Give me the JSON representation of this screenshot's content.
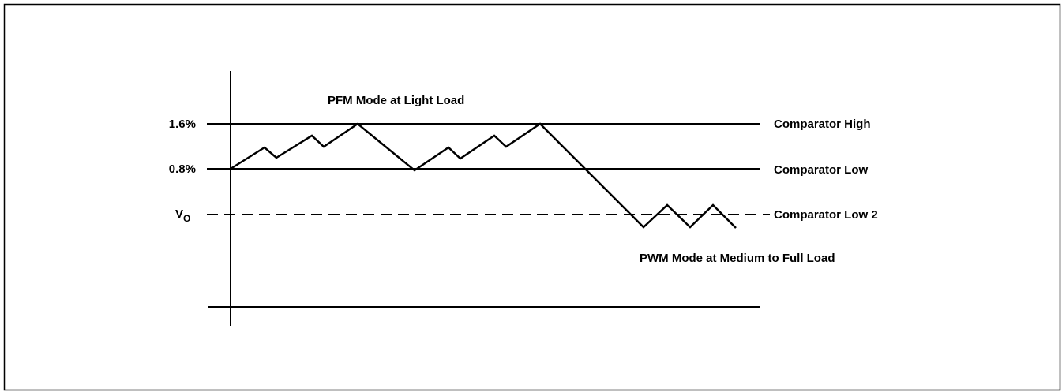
{
  "title": "PFM Mode at Light Load",
  "levels": [
    {
      "label": "1.6%",
      "name": "Comparator High"
    },
    {
      "label": "0.8%",
      "name": "Comparator Low"
    },
    {
      "label": {
        "main": "V",
        "sub": "O"
      },
      "name": "Comparator Low 2"
    }
  ],
  "note": "PWM Mode at Medium to Full Load"
}
